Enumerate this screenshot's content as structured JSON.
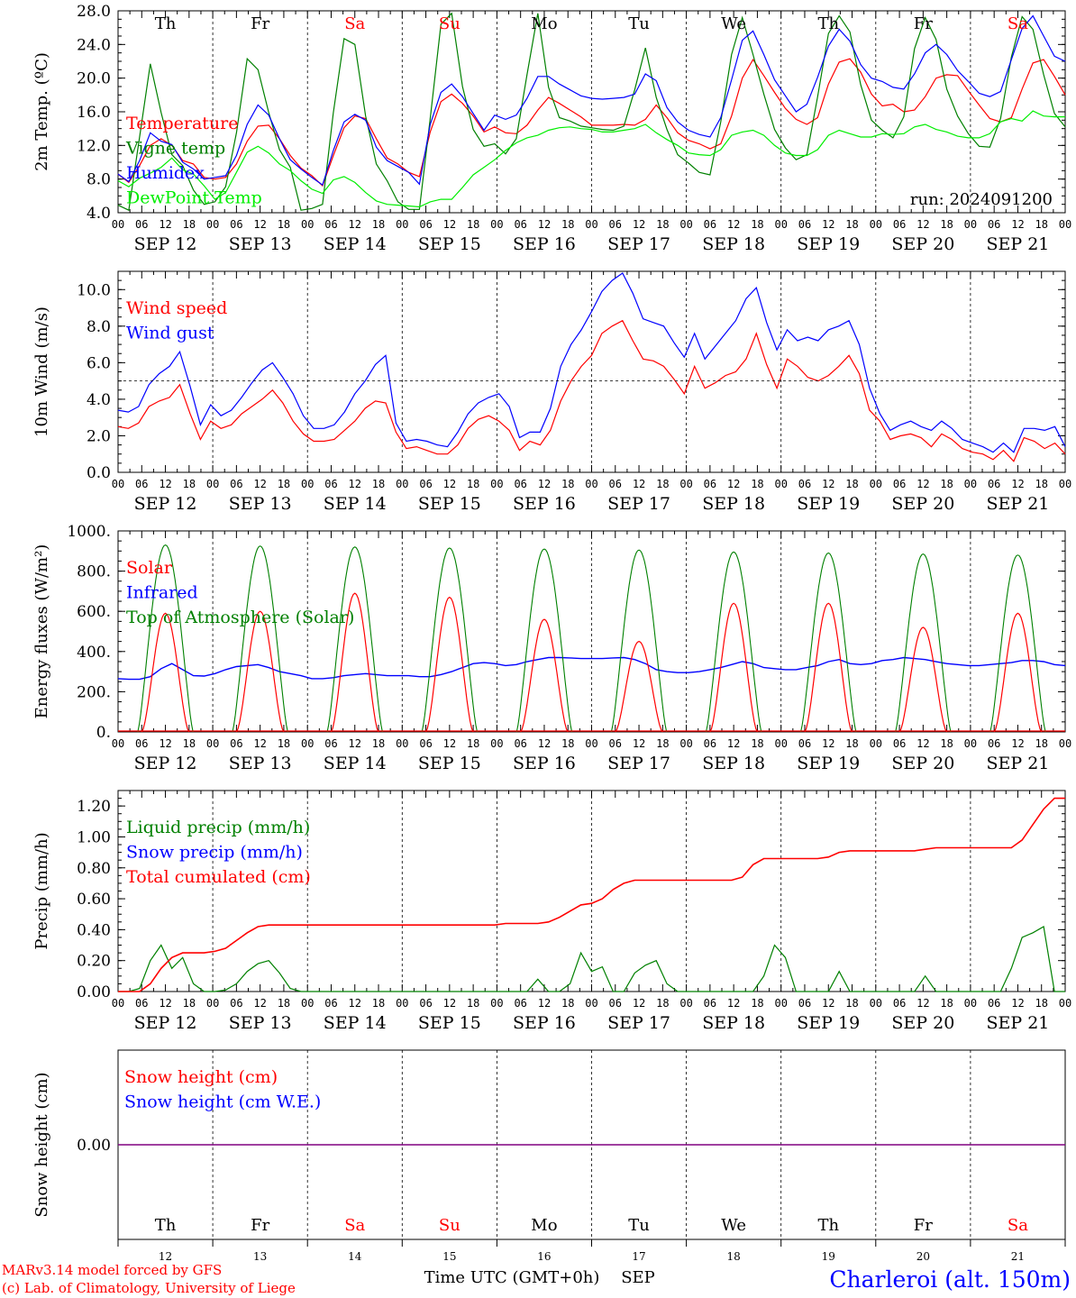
{
  "chart_data": [
    {
      "type": "line",
      "ylabel": "2m Temp. (ºC)",
      "ylim": [
        4,
        28
      ],
      "yticks": [
        "4.0",
        "8.0",
        "12.0",
        "16.0",
        "20.0",
        "24.0",
        "28.0"
      ],
      "annotation": "run: 2024091200",
      "series": [
        {
          "name": "Temperature",
          "color": "#ff0000",
          "values": [
            8.6,
            7.6,
            9.6,
            12.0,
            12.8,
            12.0,
            10.2,
            9.8,
            8.2,
            8.0,
            8.2,
            9.8,
            12.5,
            14.3,
            14.4,
            12.8,
            10.8,
            9.3,
            8.4,
            7.2,
            10.8,
            14.1,
            15.5,
            15.2,
            12.8,
            10.5,
            9.8,
            8.8,
            8.3,
            13.6,
            17.2,
            18.1,
            17.0,
            15.5,
            13.6,
            14.2,
            13.5,
            13.4,
            14.4,
            16.2,
            17.7,
            17.0,
            16.2,
            15.4,
            14.4,
            14.4,
            14.4,
            14.5,
            14.4,
            15.1,
            16.8,
            15.3,
            13.5,
            12.6,
            12.2,
            11.6,
            12.2,
            15.5,
            20.0,
            22.2,
            20.3,
            18.3,
            16.4,
            15.1,
            14.5,
            15.3,
            19.3,
            21.9,
            22.3,
            20.7,
            18.1,
            16.7,
            16.9,
            16.0,
            16.2,
            17.8,
            20.0,
            20.4,
            20.3,
            18.5,
            16.8,
            15.2,
            14.8,
            15.3,
            18.7,
            21.8,
            22.2,
            20.2,
            18.0
          ]
        },
        {
          "name": "Vigne temp",
          "color": "#008000",
          "values": [
            4.9,
            4.3,
            13.0,
            21.7,
            15.9,
            10.9,
            9.6,
            6.7,
            5.0,
            5.3,
            7.1,
            13.5,
            22.3,
            21.0,
            15.9,
            11.5,
            9.4,
            4.3,
            4.5,
            5.0,
            15.9,
            24.7,
            24.0,
            15.5,
            9.8,
            7.8,
            5.3,
            4.4,
            4.4,
            15.2,
            26.4,
            27.7,
            19.0,
            13.9,
            11.9,
            12.2,
            11.0,
            12.8,
            20.4,
            27.7,
            18.9,
            15.3,
            14.9,
            14.3,
            14.1,
            13.9,
            13.8,
            14.3,
            18.6,
            23.6,
            17.7,
            13.9,
            10.9,
            9.9,
            8.8,
            8.5,
            14.8,
            22.8,
            27.2,
            22.8,
            18.1,
            13.9,
            11.7,
            10.3,
            10.9,
            17.8,
            25.3,
            27.4,
            25.5,
            19.2,
            15.0,
            13.8,
            12.9,
            15.4,
            23.5,
            27.2,
            24.6,
            18.7,
            15.5,
            13.4,
            11.9,
            11.8,
            15.2,
            22.5,
            27.3,
            25.8,
            20.4,
            15.8,
            14.2
          ]
        },
        {
          "name": "Humidex",
          "color": "#0000ff",
          "values": [
            8.6,
            7.7,
            10.2,
            13.5,
            12.5,
            12.1,
            10.0,
            9.2,
            8.0,
            8.2,
            8.4,
            10.8,
            14.5,
            16.8,
            15.6,
            12.8,
            10.3,
            9.2,
            8.2,
            7.3,
            11.4,
            14.8,
            15.7,
            15.0,
            11.8,
            10.2,
            9.5,
            8.8,
            7.4,
            14.5,
            18.3,
            19.3,
            17.8,
            15.8,
            13.8,
            15.6,
            15.1,
            15.6,
            17.6,
            20.2,
            20.2,
            19.3,
            18.6,
            17.9,
            17.6,
            17.5,
            17.6,
            17.7,
            18.1,
            20.5,
            19.7,
            16.5,
            14.8,
            13.8,
            13.3,
            13.0,
            15.3,
            19.8,
            24.5,
            25.6,
            22.8,
            19.8,
            17.9,
            16.0,
            16.9,
            20.1,
            23.8,
            25.8,
            24.4,
            21.6,
            20.0,
            19.6,
            18.9,
            18.7,
            20.5,
            23.0,
            24.0,
            22.8,
            20.9,
            19.6,
            18.2,
            17.8,
            18.4,
            22.2,
            25.9,
            27.4,
            25.0,
            22.6,
            22.0
          ]
        },
        {
          "name": "DewPoint Temp",
          "color": "#00ee00",
          "values": [
            7.8,
            7.1,
            8.1,
            8.7,
            9.4,
            10.5,
            9.1,
            8.6,
            7.2,
            5.6,
            6.4,
            8.8,
            11.2,
            11.9,
            11.1,
            9.8,
            9.0,
            7.8,
            6.8,
            6.3,
            7.9,
            8.3,
            7.6,
            6.4,
            5.4,
            5.0,
            4.9,
            4.8,
            4.7,
            5.3,
            5.6,
            5.6,
            7.0,
            8.5,
            9.4,
            10.3,
            11.4,
            12.3,
            12.9,
            13.2,
            13.8,
            14.1,
            14.2,
            14.0,
            13.9,
            13.6,
            13.6,
            13.8,
            14.0,
            14.5,
            13.5,
            12.7,
            12.0,
            11.1,
            10.9,
            10.8,
            11.5,
            13.2,
            13.6,
            13.8,
            13.2,
            12.0,
            11.1,
            10.8,
            10.8,
            11.5,
            13.2,
            13.8,
            13.4,
            13.0,
            13.0,
            13.4,
            13.3,
            13.4,
            14.2,
            14.5,
            13.9,
            13.6,
            13.1,
            12.9,
            12.9,
            13.4,
            14.8,
            15.2,
            14.9,
            16.1,
            15.5,
            15.4,
            15.4
          ]
        }
      ]
    },
    {
      "type": "line",
      "ylabel": "10m Wind (m/s)",
      "ylim": [
        0,
        11
      ],
      "yticks": [
        "0.0",
        "2.0",
        "4.0",
        "6.0",
        "8.0",
        "10.0"
      ],
      "reference_line": 5,
      "series": [
        {
          "name": "Wind speed",
          "color": "#ff0000",
          "values": [
            2.5,
            2.4,
            2.7,
            3.6,
            3.9,
            4.1,
            4.8,
            3.2,
            1.8,
            2.8,
            2.4,
            2.6,
            3.2,
            3.6,
            4.0,
            4.5,
            3.8,
            2.8,
            2.1,
            1.7,
            1.7,
            1.8,
            2.3,
            2.8,
            3.5,
            3.9,
            3.8,
            2.2,
            1.3,
            1.4,
            1.2,
            1.0,
            1.0,
            1.5,
            2.4,
            2.9,
            3.1,
            2.8,
            2.3,
            1.2,
            1.7,
            1.5,
            2.3,
            3.9,
            5.0,
            5.8,
            6.4,
            7.6,
            8.0,
            8.3,
            7.2,
            6.2,
            6.1,
            5.8,
            5.1,
            4.3,
            5.8,
            4.6,
            4.9,
            5.3,
            5.5,
            6.2,
            7.6,
            5.9,
            4.6,
            6.2,
            5.8,
            5.2,
            5.0,
            5.3,
            5.8,
            6.4,
            5.4,
            3.4,
            2.8,
            1.8,
            2.0,
            2.1,
            1.9,
            1.4,
            2.1,
            1.8,
            1.3,
            1.1,
            1.0,
            0.7,
            1.2,
            0.6,
            1.9,
            1.7,
            1.3,
            1.6,
            1.0
          ]
        },
        {
          "name": "Wind gust",
          "color": "#0000ff",
          "values": [
            3.4,
            3.3,
            3.6,
            4.8,
            5.4,
            5.8,
            6.6,
            4.7,
            2.6,
            3.7,
            3.1,
            3.4,
            4.1,
            4.9,
            5.6,
            6.0,
            5.2,
            4.3,
            3.1,
            2.4,
            2.4,
            2.6,
            3.3,
            4.3,
            5.0,
            5.9,
            6.4,
            2.7,
            1.7,
            1.8,
            1.7,
            1.5,
            1.4,
            2.2,
            3.2,
            3.8,
            4.1,
            4.3,
            3.6,
            1.9,
            2.2,
            2.2,
            3.5,
            5.8,
            7.0,
            7.8,
            8.8,
            9.9,
            10.5,
            10.9,
            9.8,
            8.4,
            8.2,
            8.0,
            7.1,
            6.3,
            7.6,
            6.2,
            6.9,
            7.6,
            8.3,
            9.5,
            10.1,
            8.2,
            6.7,
            7.8,
            7.2,
            7.4,
            7.2,
            7.8,
            8.0,
            8.3,
            7.0,
            4.6,
            3.2,
            2.3,
            2.6,
            2.8,
            2.5,
            2.3,
            2.8,
            2.4,
            1.8,
            1.6,
            1.4,
            1.1,
            1.6,
            1.1,
            2.4,
            2.4,
            2.3,
            2.5,
            1.4
          ]
        }
      ]
    },
    {
      "type": "line",
      "ylabel": "Energy fluxes (W/m²)",
      "ylim": [
        0,
        1000
      ],
      "yticks": [
        "0.",
        "200.",
        "400.",
        "600.",
        "800.",
        "1000."
      ],
      "series": [
        {
          "name": "Solar",
          "color": "#ff0000",
          "note": "daily peaks",
          "daily_peaks": [
            590,
            600,
            690,
            670,
            560,
            450,
            640,
            640,
            520,
            590
          ]
        },
        {
          "name": "Infrared",
          "color": "#0000ff",
          "values": [
            265,
            262,
            262,
            275,
            315,
            340,
            310,
            280,
            278,
            290,
            310,
            325,
            330,
            335,
            320,
            300,
            290,
            280,
            265,
            265,
            270,
            280,
            285,
            290,
            285,
            280,
            280,
            280,
            275,
            275,
            285,
            300,
            320,
            340,
            345,
            340,
            330,
            335,
            350,
            360,
            370,
            370,
            368,
            365,
            365,
            365,
            368,
            370,
            360,
            340,
            310,
            300,
            295,
            295,
            300,
            310,
            320,
            335,
            350,
            340,
            320,
            315,
            310,
            310,
            320,
            330,
            350,
            360,
            340,
            335,
            340,
            355,
            360,
            370,
            365,
            360,
            350,
            340,
            335,
            330,
            330,
            335,
            340,
            345,
            355,
            355,
            350,
            335,
            330
          ]
        },
        {
          "name": "Top of Atmosphere (Solar)",
          "color": "#008000",
          "note": "daily peaks",
          "daily_peaks": [
            930,
            925,
            920,
            915,
            910,
            905,
            895,
            890,
            885,
            880
          ]
        }
      ]
    },
    {
      "type": "line",
      "ylabel": "Precip (mm/h)",
      "ylim": [
        0,
        1.3
      ],
      "yticks": [
        "0.00",
        "0.20",
        "0.40",
        "0.60",
        "0.80",
        "1.00",
        "1.20"
      ],
      "series": [
        {
          "name": "Liquid precip (mm/h)",
          "color": "#008000",
          "values": [
            0,
            0,
            0.02,
            0.2,
            0.3,
            0.15,
            0.22,
            0.05,
            0,
            0,
            0.01,
            0.05,
            0.13,
            0.18,
            0.2,
            0.12,
            0.02,
            0,
            0,
            0,
            0,
            0,
            0,
            0,
            0,
            0,
            0,
            0,
            0,
            0,
            0,
            0,
            0,
            0,
            0,
            0,
            0,
            0,
            0,
            0.08,
            0,
            0,
            0.05,
            0.25,
            0.13,
            0.16,
            0,
            0,
            0.12,
            0.17,
            0.2,
            0.05,
            0,
            0,
            0,
            0,
            0,
            0,
            0,
            0,
            0.1,
            0.3,
            0.22,
            0,
            0,
            0,
            0,
            0.13,
            0,
            0,
            0,
            0,
            0,
            0,
            0,
            0.1,
            0,
            0,
            0,
            0,
            0,
            0,
            0,
            0.15,
            0.35,
            0.38,
            0.42,
            0,
            0
          ]
        },
        {
          "name": "Snow precip (mm/h)",
          "color": "#0000ff",
          "values": []
        },
        {
          "name": "Total cumulated (cm)",
          "color": "#ff0000",
          "values": [
            0,
            0,
            0,
            0.05,
            0.15,
            0.22,
            0.25,
            0.25,
            0.25,
            0.26,
            0.28,
            0.33,
            0.38,
            0.42,
            0.43,
            0.43,
            0.43,
            0.43,
            0.43,
            0.43,
            0.43,
            0.43,
            0.43,
            0.43,
            0.43,
            0.43,
            0.43,
            0.43,
            0.43,
            0.43,
            0.43,
            0.43,
            0.43,
            0.43,
            0.43,
            0.43,
            0.44,
            0.44,
            0.44,
            0.44,
            0.45,
            0.48,
            0.52,
            0.56,
            0.57,
            0.6,
            0.66,
            0.7,
            0.72,
            0.72,
            0.72,
            0.72,
            0.72,
            0.72,
            0.72,
            0.72,
            0.72,
            0.72,
            0.74,
            0.82,
            0.86,
            0.86,
            0.86,
            0.86,
            0.86,
            0.86,
            0.87,
            0.9,
            0.91,
            0.91,
            0.91,
            0.91,
            0.91,
            0.91,
            0.91,
            0.92,
            0.93,
            0.93,
            0.93,
            0.93,
            0.93,
            0.93,
            0.93,
            0.93,
            0.98,
            1.08,
            1.18,
            1.25,
            1.25
          ]
        }
      ]
    },
    {
      "type": "line",
      "ylabel": "Snow height (cm)",
      "yticks": [
        "0.00"
      ],
      "series": [
        {
          "name": "Snow height (cm)",
          "color": "#ff0000",
          "values": [
            0,
            0
          ]
        },
        {
          "name": "Snow height (cm W.E.)",
          "color": "#0000ff",
          "values": [
            0,
            0
          ]
        }
      ]
    }
  ],
  "weekdays": [
    {
      "label": "Th",
      "color": "#000000"
    },
    {
      "label": "Fr",
      "color": "#000000"
    },
    {
      "label": "Sa",
      "color": "#ff0000"
    },
    {
      "label": "Su",
      "color": "#ff0000"
    },
    {
      "label": "Mo",
      "color": "#000000"
    },
    {
      "label": "Tu",
      "color": "#000000"
    },
    {
      "label": "We",
      "color": "#000000"
    },
    {
      "label": "Th",
      "color": "#000000"
    },
    {
      "label": "Fr",
      "color": "#000000"
    },
    {
      "label": "Sa",
      "color": "#ff0000"
    }
  ],
  "date_labels": [
    "SEP 12",
    "SEP 13",
    "SEP 14",
    "SEP 15",
    "SEP 16",
    "SEP 17",
    "SEP 18",
    "SEP 19",
    "SEP 20",
    "SEP 21"
  ],
  "hour_ticks": [
    "00",
    "06",
    "12",
    "18"
  ],
  "last_hour_tick": "00",
  "day_numbers": [
    "12",
    "13",
    "14",
    "15",
    "16",
    "17",
    "18",
    "19",
    "20",
    "21"
  ],
  "xlabel": "Time UTC (GMT+0h)",
  "xlabel_month": "SEP",
  "footer": {
    "model_line": "MARv3.14 model forced by GFS",
    "credit_line": "(c) Lab. of Climatology, University of Liege",
    "station": "Charleroi (alt. 150m)"
  }
}
